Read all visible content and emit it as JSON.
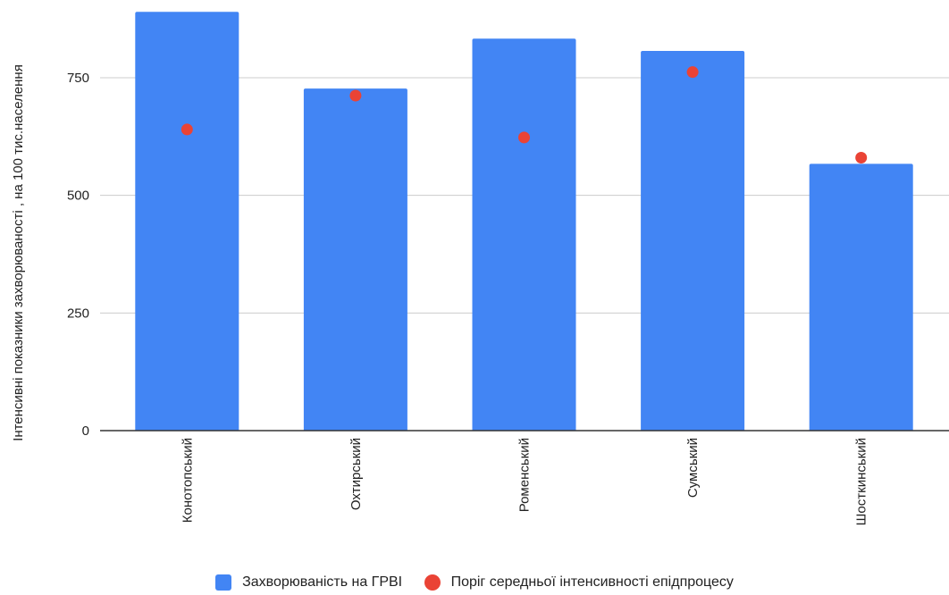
{
  "chart_data": {
    "type": "bar",
    "categories": [
      "Конотопський",
      "Охтирський",
      "Роменський",
      "Сумський",
      "Шосткинський"
    ],
    "series": [
      {
        "name": "Захворюваність на ГРВІ",
        "type": "bar",
        "color": "#4285F4",
        "values": [
          890,
          727,
          833,
          807,
          567
        ]
      },
      {
        "name": "Поріг середньої інтенсивності епідпроцесу",
        "type": "scatter",
        "color": "#EA4335",
        "values": [
          640,
          712,
          623,
          762,
          580
        ]
      }
    ],
    "ylabel": "Інтенсивні показники захворюваності , на 100 тис.населення",
    "xlabel": "",
    "ylim": [
      0,
      900
    ],
    "yticks": [
      0,
      250,
      500,
      750
    ],
    "grid": true,
    "legend": "bottom"
  }
}
